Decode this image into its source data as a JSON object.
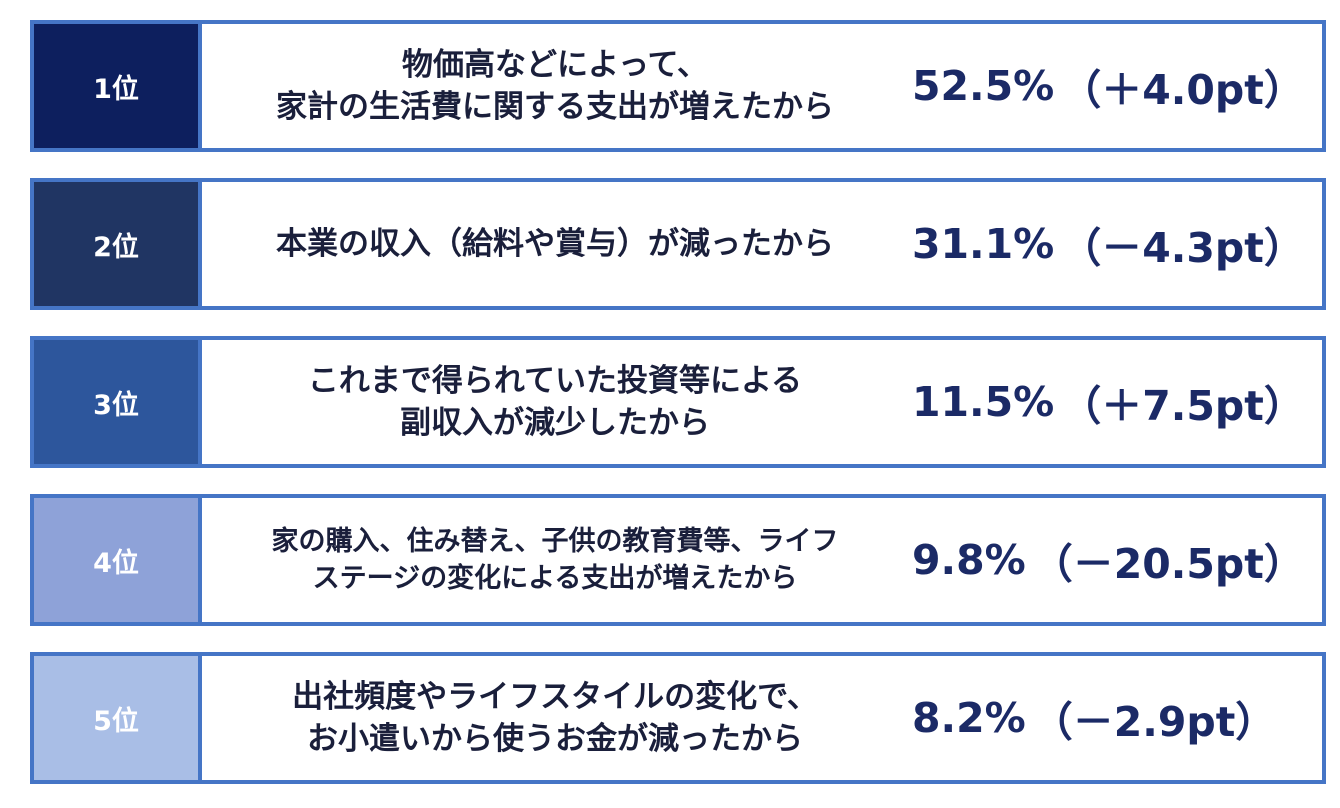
{
  "colors": {
    "border": "#4575c6",
    "badges": [
      "#0d1f5e",
      "#203563",
      "#2d569c",
      "#8ea2d8",
      "#a9bee6"
    ],
    "reason_text": "#1a1f3b",
    "value_text": "#1b2a66"
  },
  "chart_data": {
    "type": "table",
    "rows": [
      {
        "rank": "1位",
        "reason_lines": [
          "物価高などによって、",
          "家計の生活費に関する支出が増えたから"
        ],
        "percent": 52.5,
        "change_pt": 4.0,
        "percent_label": "52.5%",
        "change_label": "（＋4.0pt）"
      },
      {
        "rank": "2位",
        "reason_lines": [
          "本業の収入（給料や賞与）が減ったから"
        ],
        "percent": 31.1,
        "change_pt": -4.3,
        "percent_label": "31.1%",
        "change_label": "（－4.3pt）"
      },
      {
        "rank": "3位",
        "reason_lines": [
          "これまで得られていた投資等による",
          "副収入が減少したから"
        ],
        "percent": 11.5,
        "change_pt": 7.5,
        "percent_label": "11.5%",
        "change_label": "（＋7.5pt）"
      },
      {
        "rank": "4位",
        "reason_lines": [
          "家の購入、住み替え、子供の教育費等、ライフ",
          "ステージの変化による支出が増えたから"
        ],
        "percent": 9.8,
        "change_pt": -20.5,
        "percent_label": "9.8%",
        "change_label": "（－20.5pt）"
      },
      {
        "rank": "5位",
        "reason_lines": [
          "出社頻度やライフスタイルの変化で、",
          "お小遣いから使うお金が減ったから"
        ],
        "percent": 8.2,
        "change_pt": -2.9,
        "percent_label": "8.2%",
        "change_label": "（－2.9pt）"
      }
    ]
  }
}
